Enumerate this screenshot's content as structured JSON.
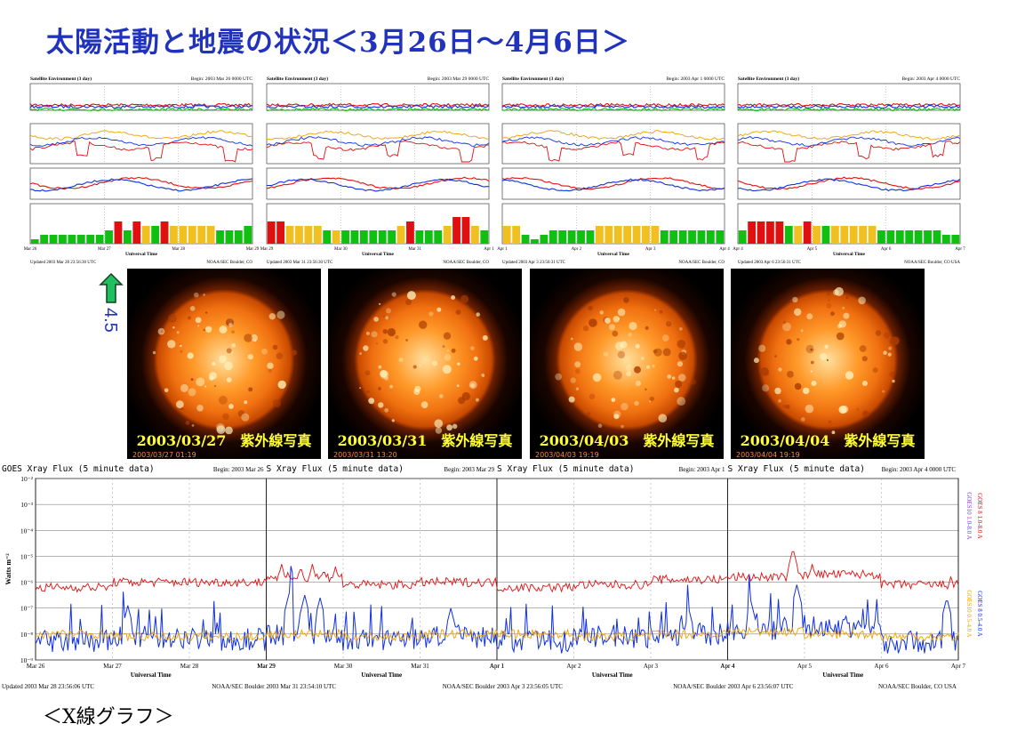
{
  "title": "太陽活動と地震の状況＜3月26日～4月6日＞",
  "bottom_label": "＜X線グラフ＞",
  "kp_label": "4.5",
  "colors": {
    "title": "#2233bb",
    "red": "#e01010",
    "blue": "#1030e0",
    "orange": "#f0a000",
    "green": "#10c010",
    "yellow_bar": "#f0c020",
    "kp_red": "#e01010"
  },
  "env_panels": [
    {
      "header_left": "Satellite Environment (3 day)",
      "header_right": "Begin: 2003 Mar 26 0000 UTC",
      "xaxis_ticks": [
        "Mar 26",
        "Mar 27",
        "Mar 28",
        "Mar 29"
      ],
      "xaxis_title": "Universal Time",
      "footer_left": "Updated 2003 Mar 28 23:56:30 UTC",
      "footer_right": "NOAA/SEC Boulder, CO",
      "kp_bars": [
        1,
        2,
        2,
        2,
        2,
        2,
        2,
        2,
        3,
        5,
        3,
        5,
        4,
        4,
        5,
        4,
        4,
        4,
        4,
        4,
        3,
        3,
        3,
        4
      ],
      "kp_colors": [
        "g",
        "g",
        "g",
        "g",
        "g",
        "g",
        "g",
        "g",
        "g",
        "r",
        "g",
        "r",
        "y",
        "g",
        "r",
        "y",
        "y",
        "y",
        "y",
        "y",
        "g",
        "g",
        "g",
        "g"
      ]
    },
    {
      "header_left": "Satellite Environment (3 day)",
      "header_right": "Begin: 2003 Mar 29 0000 UTC",
      "xaxis_ticks": [
        "Mar 29",
        "Mar 30",
        "Mar 31",
        "Apr 1"
      ],
      "xaxis_title": "Universal Time",
      "footer_left": "Updated 2003 Mar 31 23:56:30 UTC",
      "footer_right": "NOAA/SEC Boulder, CO",
      "kp_bars": [
        5,
        5,
        4,
        4,
        4,
        4,
        3,
        3,
        3,
        3,
        3,
        3,
        3,
        3,
        4,
        5,
        3,
        3,
        3,
        4,
        6,
        6,
        4,
        3
      ],
      "kp_colors": [
        "r",
        "r",
        "y",
        "y",
        "y",
        "y",
        "g",
        "y",
        "g",
        "g",
        "g",
        "g",
        "g",
        "g",
        "y",
        "r",
        "g",
        "g",
        "g",
        "y",
        "r",
        "r",
        "y",
        "g"
      ]
    },
    {
      "header_left": "Satellite Environment (3 day)",
      "header_right": "Begin: 2003 Apr 1 0000 UTC",
      "xaxis_ticks": [
        "Apr 1",
        "Apr 2",
        "Apr 3",
        "Apr 4"
      ],
      "xaxis_title": "Universal Time",
      "footer_left": "Updated 2003 Apr 3 23:56:31 UTC",
      "footer_right": "NOAA/SEC Boulder, CO",
      "kp_bars": [
        4,
        4,
        2,
        1,
        2,
        3,
        3,
        3,
        3,
        3,
        4,
        4,
        4,
        4,
        4,
        4,
        4,
        3,
        3,
        3,
        3,
        3,
        3,
        3
      ],
      "kp_colors": [
        "y",
        "y",
        "g",
        "g",
        "g",
        "g",
        "g",
        "g",
        "g",
        "g",
        "y",
        "y",
        "y",
        "y",
        "y",
        "y",
        "y",
        "g",
        "g",
        "g",
        "g",
        "g",
        "g",
        "g"
      ]
    },
    {
      "header_left": "Satellite Environment (3 day)",
      "header_right": "Begin: 2003 Apr 4 0000 UTC",
      "xaxis_ticks": [
        "Apr 4",
        "Apr 5",
        "Apr 6",
        "Apr 7"
      ],
      "xaxis_title": "Universal Time",
      "footer_left": "Updated 2003 Apr 6 23:56:31 UTC",
      "footer_right": "NOAA/SEC Boulder, CO USA",
      "kp_bars": [
        3,
        5,
        5,
        5,
        5,
        4,
        4,
        5,
        4,
        4,
        4,
        4,
        4,
        4,
        4,
        3,
        3,
        3,
        3,
        3,
        3,
        3,
        2,
        2
      ],
      "kp_colors": [
        "g",
        "r",
        "r",
        "r",
        "r",
        "g",
        "y",
        "r",
        "y",
        "g",
        "y",
        "y",
        "y",
        "y",
        "y",
        "g",
        "g",
        "g",
        "g",
        "g",
        "g",
        "g",
        "g",
        "g"
      ]
    }
  ],
  "sun_images": [
    {
      "caption": "2003/03/27　紫外線写真",
      "stamp": "2003/03/27 01:19"
    },
    {
      "caption": "2003/03/31　紫外線写真",
      "stamp": "2003/03/31 13:20"
    },
    {
      "caption": "2003/04/03　紫外線写真",
      "stamp": "2003/04/03 19:19"
    },
    {
      "caption": "2003/04/04　紫外線写真",
      "stamp": "2003/04/04 19:19"
    }
  ],
  "chart_data": {
    "type": "line",
    "title": "GOES Xray Flux (5 minute data)",
    "panels": [
      {
        "title": "GOES Xray Flux (5 minute data)",
        "begin": "Begin: 2003 Mar 26",
        "footer_left": "Updated 2003 Mar 28 23:56:06 UTC",
        "footer_right": "NOAA/SEC Boulder",
        "x_ticks": [
          "Mar 26",
          "Mar 27",
          "Mar 28",
          "Mar 29"
        ]
      },
      {
        "title": "S Xray Flux (5 minute data)",
        "begin": "Begin: 2003 Mar 29",
        "footer_left": "2003 Mar 31 23:54:10 UTC",
        "footer_right": "NOAA/SEC Boulder",
        "x_ticks": [
          "Mar 29",
          "Mar 30",
          "Mar 31",
          "Apr 1"
        ]
      },
      {
        "title": "S Xray Flux (5 minute data)",
        "begin": "Begin: 2003 Apr 1",
        "footer_left": "2003 Apr 3 23:56:05 UTC",
        "footer_right": "NOAA/SEC Boulder",
        "x_ticks": [
          "Apr 1",
          "Apr 2",
          "Apr 3",
          "Apr 4"
        ]
      },
      {
        "title": "S Xray Flux (5 minute data)",
        "begin": "Begin: 2003 Apr 4 0000 UTC",
        "footer_left": "2003 Apr 6 23:56:07 UTC",
        "footer_right": "NOAA/SEC Boulder, CO USA",
        "x_ticks": [
          "Apr 4",
          "Apr 5",
          "Apr 6",
          "Apr 7"
        ]
      }
    ],
    "x_title": "Universal Time",
    "ylabel": "Watts m⁻²",
    "y_scale": "log",
    "ylim": [
      1e-09,
      0.01
    ],
    "y_ticks": [
      "10⁻²",
      "10⁻³",
      "10⁻⁴",
      "10⁻⁵",
      "10⁻⁶",
      "10⁻⁷",
      "10⁻⁸",
      "10⁻⁹"
    ],
    "legend": [
      {
        "name": "GOES10 1.0-8.0 A",
        "color": "#8844cc"
      },
      {
        "name": "GOES 8 1.0-8.0 A",
        "color": "#e01010"
      },
      {
        "name": "GOES10 0.5-4.0 A",
        "color": "#f0a000"
      },
      {
        "name": "GOES 8 0.5-4.0 A",
        "color": "#1030e0"
      }
    ],
    "series": [
      {
        "name": "GOES 8 1.0-8.0 A",
        "color": "#e01010",
        "log_values_daily": [
          -6.2,
          -6.0,
          -6.0,
          -5.8,
          -6.1,
          -6.0,
          -6.2,
          -6.1,
          -5.9,
          -5.8,
          -5.7,
          -6.1
        ],
        "peaks": [
          [
            3.2,
            -5.3
          ],
          [
            3.45,
            -5.4
          ],
          [
            3.6,
            -5.3
          ],
          [
            3.75,
            -5.5
          ],
          [
            3.9,
            -5.4
          ],
          [
            9.85,
            -4.7
          ],
          [
            10.1,
            -5.3
          ],
          [
            11.9,
            -5.8
          ]
        ]
      },
      {
        "name": "GOES 8 0.5-4.0 A",
        "color": "#1030e0",
        "log_values_daily": [
          -8.3,
          -8.1,
          -8.2,
          -8.0,
          -8.2,
          -8.1,
          -8.3,
          -8.1,
          -8.0,
          -7.8,
          -7.7,
          -8.3
        ],
        "peaks": [
          [
            1.2,
            -6.9
          ],
          [
            3.3,
            -6.4
          ],
          [
            3.5,
            -6.5
          ],
          [
            3.7,
            -6.6
          ],
          [
            5.4,
            -7.0
          ],
          [
            8.5,
            -7.1
          ],
          [
            9.3,
            -6.7
          ],
          [
            9.9,
            -6.1
          ],
          [
            11.85,
            -6.6
          ]
        ]
      },
      {
        "name": "GOES10 0.5-4.0 A",
        "color": "#f0a000",
        "log_values_daily": [
          -8.0,
          -8.1,
          -8.1,
          -8.0,
          -8.1,
          -8.0,
          -8.0,
          -8.1,
          -8.0,
          -7.9,
          -8.0,
          -8.1
        ]
      }
    ]
  }
}
